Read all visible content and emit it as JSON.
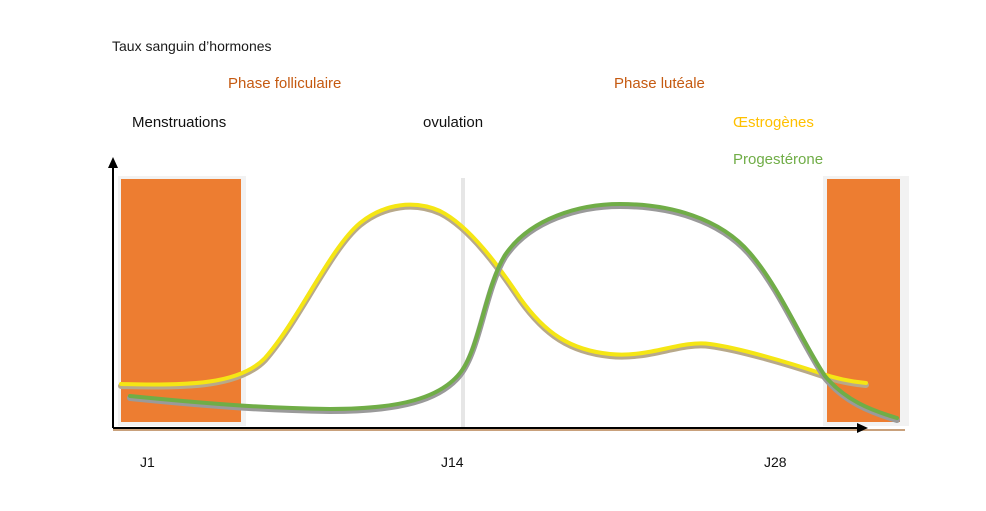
{
  "diagram": {
    "y_axis_title": "Taux sanguin d’hormones",
    "phase_labels": {
      "follicular": "Phase folliculaire",
      "luteal": "Phase lutéale"
    },
    "event_labels": {
      "menstruation": "Menstruations",
      "ovulation": "ovulation"
    },
    "legend": {
      "estrogen": "Œstrogènes",
      "progesterone": "Progestérone"
    },
    "x_ticks": [
      "J1",
      "J14",
      "J28"
    ],
    "colors": {
      "menstruation_block": "#ED7D31",
      "phase_label": "#C55A11",
      "estrogen": "#F5E614",
      "estrogen_legend": "#FFC000",
      "progesterone": "#70AD47",
      "axis": "#000000"
    }
  }
}
